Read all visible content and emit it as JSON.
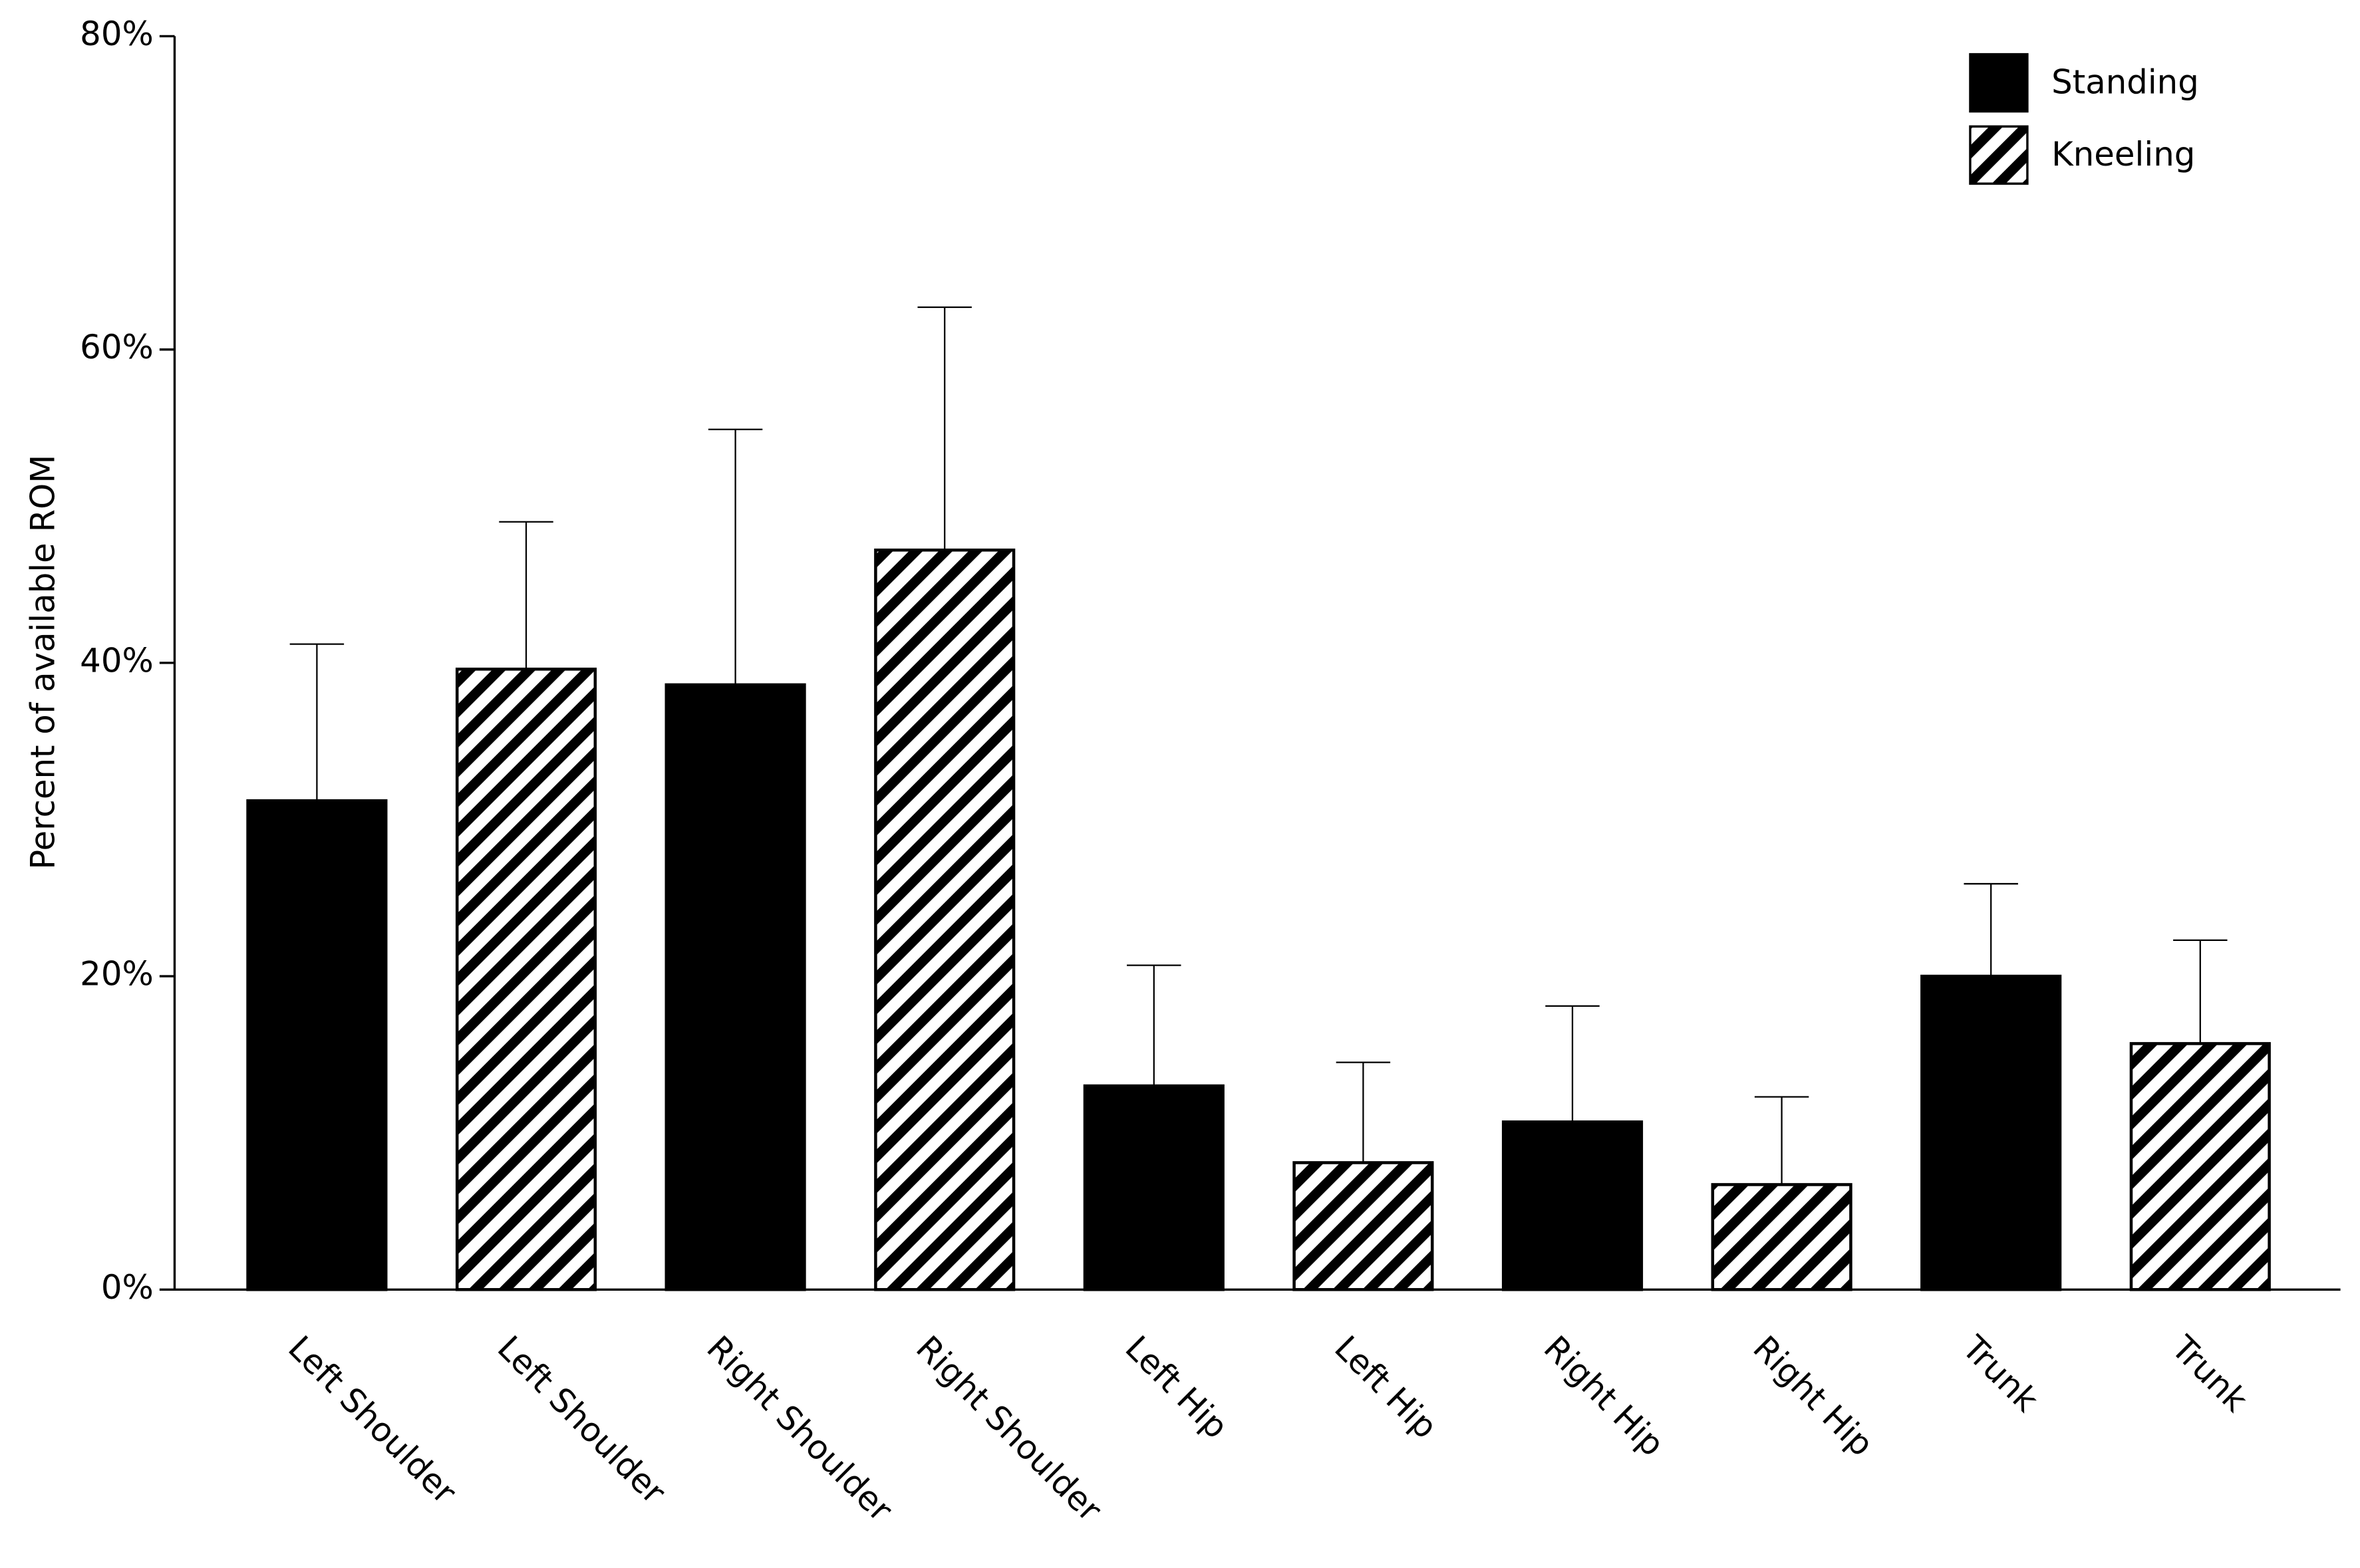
{
  "chart_data": {
    "type": "bar",
    "y_label": "Percent of available ROM",
    "categories": [
      "Left Shoulder",
      "Right Shoulder",
      "Left Hip",
      "Right Hip",
      "Trunk"
    ],
    "series": [
      {
        "name": "Standing",
        "color": "#000000",
        "pattern": "solid",
        "values": [
          31.2,
          38.6,
          13.0,
          10.7,
          20.0
        ],
        "errors": [
          10.0,
          16.3,
          7.7,
          7.4,
          5.9
        ]
      },
      {
        "name": "Kneeling",
        "color": "#000000",
        "pattern": "hatch",
        "values": [
          39.6,
          47.2,
          8.1,
          6.7,
          15.7
        ],
        "errors": [
          9.4,
          15.5,
          6.4,
          5.6,
          6.6
        ]
      }
    ],
    "ylim": [
      0,
      80
    ],
    "yticks": [
      {
        "value": 0,
        "label": "0%"
      },
      {
        "value": 20,
        "label": "20%"
      },
      {
        "value": 40,
        "label": "40%"
      },
      {
        "value": 60,
        "label": "60%"
      },
      {
        "value": 80,
        "label": "80%"
      }
    ],
    "grid": false,
    "legend": "top-right"
  }
}
